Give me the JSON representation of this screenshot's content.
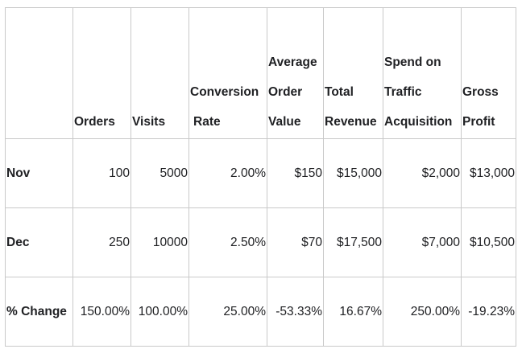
{
  "table": {
    "headers": [
      {
        "lines": [
          ""
        ]
      },
      {
        "lines": [
          "Orders"
        ]
      },
      {
        "lines": [
          "Visits"
        ]
      },
      {
        "lines": [
          "Conversion",
          "Rate"
        ]
      },
      {
        "lines": [
          "Average",
          "Order",
          "Value"
        ]
      },
      {
        "lines": [
          "Total",
          "Revenue"
        ]
      },
      {
        "lines": [
          "Spend on",
          "Traffic",
          "Acquisition"
        ]
      },
      {
        "lines": [
          "Gross",
          "Profit"
        ]
      }
    ],
    "rows": [
      {
        "label": "Nov",
        "cells": [
          "100",
          "5000",
          "2.00%",
          "$150",
          "$15,000",
          "$2,000",
          "$13,000"
        ]
      },
      {
        "label": "Dec",
        "cells": [
          "250",
          "10000",
          "2.50%",
          "$70",
          "$17,500",
          "$7,000",
          "$10,500"
        ]
      },
      {
        "label": "% Change",
        "cells": [
          "150.00%",
          "100.00%",
          "25.00%",
          "-53.33%",
          "16.67%",
          "250.00%",
          "-19.23%"
        ]
      }
    ]
  }
}
